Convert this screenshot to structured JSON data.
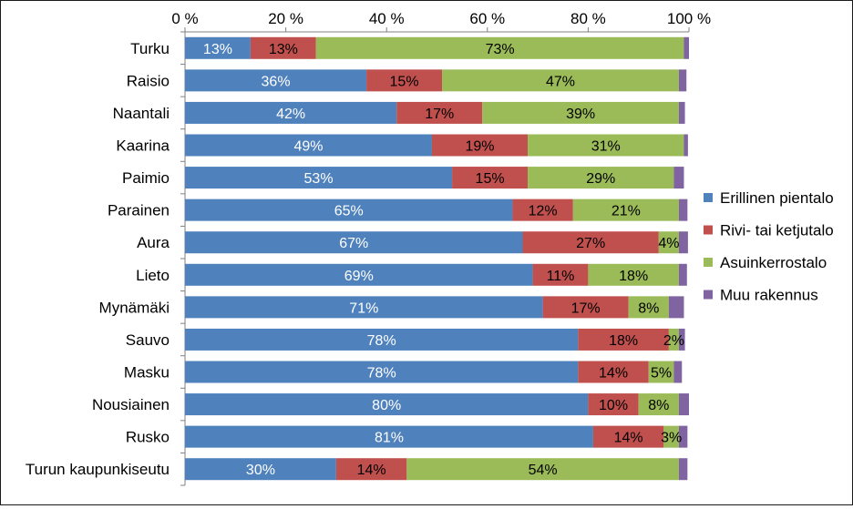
{
  "chart_data": {
    "type": "bar",
    "orientation": "horizontal",
    "stacked": true,
    "percent_stacked": true,
    "title": "",
    "xlabel": "",
    "ylabel": "",
    "xlim": [
      0,
      100
    ],
    "x_ticks": [
      0,
      20,
      40,
      60,
      80,
      100
    ],
    "x_tick_labels": [
      "0 %",
      "20 %",
      "40 %",
      "60 %",
      "80 %",
      "100 %"
    ],
    "x_axis_position": "top",
    "grid": false,
    "legend_position": "right",
    "categories": [
      "Turku",
      "Raisio",
      "Naantali",
      "Kaarina",
      "Paimio",
      "Parainen",
      "Aura",
      "Lieto",
      "Mynämäki",
      "Sauvo",
      "Masku",
      "Nousiainen",
      "Rusko",
      "Turun kaupunkiseutu"
    ],
    "series": [
      {
        "name": "Erillinen pientalo",
        "color": "#4F81BD",
        "values": [
          13,
          36,
          42,
          49,
          53,
          65,
          67,
          69,
          71,
          78,
          78,
          80,
          81,
          30
        ],
        "labels": [
          "13%",
          "36%",
          "42%",
          "49%",
          "53%",
          "65%",
          "67%",
          "69%",
          "71%",
          "78%",
          "78%",
          "80%",
          "81%",
          "30%"
        ]
      },
      {
        "name": "Rivi- tai ketjutalo",
        "color": "#C0504D",
        "values": [
          13,
          15,
          17,
          19,
          15,
          12,
          27,
          11,
          17,
          18,
          14,
          10,
          14,
          14
        ],
        "labels": [
          "13%",
          "15%",
          "17%",
          "19%",
          "15%",
          "12%",
          "27%",
          "11%",
          "17%",
          "18%",
          "14%",
          "10%",
          "14%",
          "14%"
        ]
      },
      {
        "name": "Asuinkerrostalo",
        "color": "#9BBB59",
        "values": [
          73,
          47,
          39,
          31,
          29,
          21,
          4,
          18,
          8,
          2,
          5,
          8,
          3,
          54
        ],
        "labels": [
          "73%",
          "47%",
          "39%",
          "31%",
          "29%",
          "21%",
          "4%",
          "18%",
          "8%",
          "2%",
          "5%",
          "8%",
          "3%",
          "54%"
        ]
      },
      {
        "name": "Muu rakennus",
        "color": "#8064A2",
        "values": [
          1.5,
          1.5,
          1.2,
          0.8,
          2,
          1.7,
          1.8,
          1.6,
          3,
          1.2,
          1.6,
          2,
          1.7,
          1.7
        ],
        "labels": [
          "",
          "",
          "",
          "",
          "",
          "",
          "",
          "",
          "",
          "",
          "",
          "",
          "",
          ""
        ]
      }
    ]
  }
}
